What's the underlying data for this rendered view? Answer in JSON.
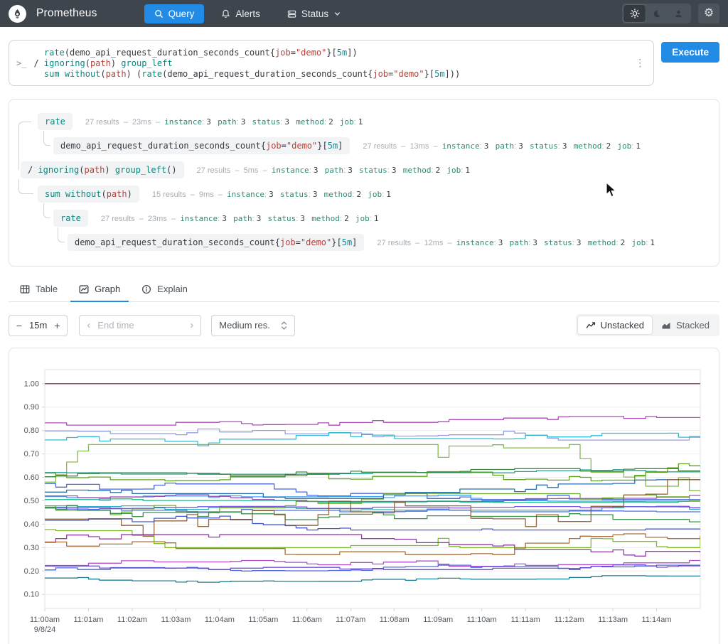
{
  "navbar": {
    "title": "Prometheus",
    "query_label": "Query",
    "alerts_label": "Alerts",
    "status_label": "Status"
  },
  "editor": {
    "prompt": ">_",
    "kebab": "⋮",
    "execute_label": "Execute",
    "lines": [
      [
        [
          "  ",
          "txt"
        ],
        [
          "rate",
          "fn"
        ],
        [
          "(demo_api_request_duration_seconds_count{",
          "txt"
        ],
        [
          "job",
          "lbl"
        ],
        [
          "=",
          "txt"
        ],
        [
          "\"demo\"",
          "str"
        ],
        [
          "}[",
          "txt"
        ],
        [
          "5m",
          "dur"
        ],
        [
          "])",
          "txt"
        ]
      ],
      [
        [
          "/ ",
          "txt"
        ],
        [
          "ignoring",
          "fn"
        ],
        [
          "(",
          "txt"
        ],
        [
          "path",
          "lbl"
        ],
        [
          ") ",
          "txt"
        ],
        [
          "group_left",
          "fn"
        ]
      ],
      [
        [
          "  ",
          "txt"
        ],
        [
          "sum",
          "fn"
        ],
        [
          " ",
          "txt"
        ],
        [
          "without",
          "fn"
        ],
        [
          "(",
          "txt"
        ],
        [
          "path",
          "lbl"
        ],
        [
          ") (",
          "txt"
        ],
        [
          "rate",
          "fn"
        ],
        [
          "(demo_api_request_duration_seconds_count{",
          "txt"
        ],
        [
          "job",
          "lbl"
        ],
        [
          "=",
          "txt"
        ],
        [
          "\"demo\"",
          "str"
        ],
        [
          "}[",
          "txt"
        ],
        [
          "5m",
          "dur"
        ],
        [
          "]))",
          "txt"
        ]
      ]
    ]
  },
  "tree": {
    "rows": [
      {
        "chip": [
          [
            "rate",
            "fn"
          ]
        ],
        "stats": [
          [
            "27 results  –  23ms  –  ",
            "gray"
          ],
          [
            "instance",
            "name"
          ],
          [
            ": ",
            "gray"
          ],
          [
            "3",
            "val"
          ],
          [
            "   ",
            "gray"
          ],
          [
            "path",
            "name"
          ],
          [
            ": ",
            "gray"
          ],
          [
            "3",
            "val"
          ],
          [
            "   ",
            "gray"
          ],
          [
            "status",
            "name"
          ],
          [
            ": ",
            "gray"
          ],
          [
            "3",
            "val"
          ],
          [
            "   ",
            "gray"
          ],
          [
            "method",
            "name"
          ],
          [
            ": ",
            "gray"
          ],
          [
            "2",
            "val"
          ],
          [
            "   ",
            "gray"
          ],
          [
            "job",
            "name"
          ],
          [
            ": ",
            "gray"
          ],
          [
            "1",
            "val"
          ]
        ]
      },
      {
        "chip": [
          [
            "demo_api_request_duration_seconds_count{",
            "txt"
          ],
          [
            "job",
            "lbl"
          ],
          [
            "=",
            "txt"
          ],
          [
            "\"demo\"",
            "str"
          ],
          [
            "}[",
            "txt"
          ],
          [
            "5m",
            "dur"
          ],
          [
            "]",
            "txt"
          ]
        ],
        "stats": [
          [
            "27 results  –  13ms  –  ",
            "gray"
          ],
          [
            "instance",
            "name"
          ],
          [
            ": ",
            "gray"
          ],
          [
            "3",
            "val"
          ],
          [
            "   ",
            "gray"
          ],
          [
            "path",
            "name"
          ],
          [
            ": ",
            "gray"
          ],
          [
            "3",
            "val"
          ],
          [
            "   ",
            "gray"
          ],
          [
            "status",
            "name"
          ],
          [
            ": ",
            "gray"
          ],
          [
            "3",
            "val"
          ],
          [
            "   ",
            "gray"
          ],
          [
            "method",
            "name"
          ],
          [
            ": ",
            "gray"
          ],
          [
            "2",
            "val"
          ],
          [
            "   ",
            "gray"
          ],
          [
            "job",
            "name"
          ],
          [
            ": ",
            "gray"
          ],
          [
            "1",
            "val"
          ]
        ]
      },
      {
        "chip": [
          [
            "/ ",
            "txt"
          ],
          [
            "ignoring",
            "fn"
          ],
          [
            "(",
            "txt"
          ],
          [
            "path",
            "lbl"
          ],
          [
            ") ",
            "txt"
          ],
          [
            "group_left",
            "fn"
          ],
          [
            "()",
            "txt"
          ]
        ],
        "stats": [
          [
            "27 results  –  5ms  –  ",
            "gray"
          ],
          [
            "instance",
            "name"
          ],
          [
            ": ",
            "gray"
          ],
          [
            "3",
            "val"
          ],
          [
            "   ",
            "gray"
          ],
          [
            "path",
            "name"
          ],
          [
            ": ",
            "gray"
          ],
          [
            "3",
            "val"
          ],
          [
            "   ",
            "gray"
          ],
          [
            "status",
            "name"
          ],
          [
            ": ",
            "gray"
          ],
          [
            "3",
            "val"
          ],
          [
            "   ",
            "gray"
          ],
          [
            "method",
            "name"
          ],
          [
            ": ",
            "gray"
          ],
          [
            "2",
            "val"
          ],
          [
            "   ",
            "gray"
          ],
          [
            "job",
            "name"
          ],
          [
            ": ",
            "gray"
          ],
          [
            "1",
            "val"
          ]
        ]
      },
      {
        "chip": [
          [
            "sum",
            "fn"
          ],
          [
            " ",
            "txt"
          ],
          [
            "without",
            "fn"
          ],
          [
            "(",
            "txt"
          ],
          [
            "path",
            "lbl"
          ],
          [
            ")",
            "txt"
          ]
        ],
        "stats": [
          [
            "15 results  –  9ms  –  ",
            "gray"
          ],
          [
            "instance",
            "name"
          ],
          [
            ": ",
            "gray"
          ],
          [
            "3",
            "val"
          ],
          [
            "   ",
            "gray"
          ],
          [
            "status",
            "name"
          ],
          [
            ": ",
            "gray"
          ],
          [
            "3",
            "val"
          ],
          [
            "   ",
            "gray"
          ],
          [
            "method",
            "name"
          ],
          [
            ": ",
            "gray"
          ],
          [
            "2",
            "val"
          ],
          [
            "   ",
            "gray"
          ],
          [
            "job",
            "name"
          ],
          [
            ": ",
            "gray"
          ],
          [
            "1",
            "val"
          ]
        ]
      },
      {
        "chip": [
          [
            "rate",
            "fn"
          ]
        ],
        "stats": [
          [
            "27 results  –  23ms  –  ",
            "gray"
          ],
          [
            "instance",
            "name"
          ],
          [
            ": ",
            "gray"
          ],
          [
            "3",
            "val"
          ],
          [
            "   ",
            "gray"
          ],
          [
            "path",
            "name"
          ],
          [
            ": ",
            "gray"
          ],
          [
            "3",
            "val"
          ],
          [
            "   ",
            "gray"
          ],
          [
            "status",
            "name"
          ],
          [
            ": ",
            "gray"
          ],
          [
            "3",
            "val"
          ],
          [
            "   ",
            "gray"
          ],
          [
            "method",
            "name"
          ],
          [
            ": ",
            "gray"
          ],
          [
            "2",
            "val"
          ],
          [
            "   ",
            "gray"
          ],
          [
            "job",
            "name"
          ],
          [
            ": ",
            "gray"
          ],
          [
            "1",
            "val"
          ]
        ]
      },
      {
        "chip": [
          [
            "demo_api_request_duration_seconds_count{",
            "txt"
          ],
          [
            "job",
            "lbl"
          ],
          [
            "=",
            "txt"
          ],
          [
            "\"demo\"",
            "str"
          ],
          [
            "}[",
            "txt"
          ],
          [
            "5m",
            "dur"
          ],
          [
            "]",
            "txt"
          ]
        ],
        "stats": [
          [
            "27 results  –  12ms  –  ",
            "gray"
          ],
          [
            "instance",
            "name"
          ],
          [
            ": ",
            "gray"
          ],
          [
            "3",
            "val"
          ],
          [
            "   ",
            "gray"
          ],
          [
            "path",
            "name"
          ],
          [
            ": ",
            "gray"
          ],
          [
            "3",
            "val"
          ],
          [
            "   ",
            "gray"
          ],
          [
            "status",
            "name"
          ],
          [
            ": ",
            "gray"
          ],
          [
            "3",
            "val"
          ],
          [
            "   ",
            "gray"
          ],
          [
            "method",
            "name"
          ],
          [
            ": ",
            "gray"
          ],
          [
            "2",
            "val"
          ],
          [
            "   ",
            "gray"
          ],
          [
            "job",
            "name"
          ],
          [
            ": ",
            "gray"
          ],
          [
            "1",
            "val"
          ]
        ]
      }
    ]
  },
  "tabs": {
    "items": [
      {
        "label": "Table",
        "active": false
      },
      {
        "label": "Graph",
        "active": true
      },
      {
        "label": "Explain",
        "active": false
      }
    ]
  },
  "controls": {
    "minus": "−",
    "range_value": "15m",
    "plus": "+",
    "prev_chevron": "‹",
    "end_time_placeholder": "End time",
    "next_chevron": "›",
    "resolution_value": "Medium res.",
    "unstacked_label": "Unstacked",
    "stacked_label": "Stacked"
  },
  "chart_data": {
    "type": "line",
    "subtype": "stepped, 27 overlapping rate() ratio series, unstacked",
    "title": "",
    "xlabel": "",
    "ylabel": "",
    "grid": "horizontal",
    "legend": "none",
    "ylim": [
      0.04,
      1.06
    ],
    "y_ticks": [
      "1.00",
      "0.90",
      "0.80",
      "0.70",
      "0.60",
      "0.50",
      "0.40",
      "0.30",
      "0.20",
      "0.10"
    ],
    "y_tick_values": [
      1.0,
      0.9,
      0.8,
      0.7,
      0.6,
      0.5,
      0.4,
      0.3,
      0.2,
      0.1
    ],
    "x_ticks": [
      "11:00am",
      "11:01am",
      "11:02am",
      "11:03am",
      "11:04am",
      "11:05am",
      "11:06am",
      "11:07am",
      "11:08am",
      "11:09am",
      "11:10am",
      "11:11am",
      "11:12am",
      "11:13am",
      "11:14am"
    ],
    "x_date_label": "9/8/24",
    "x_minutes_span": 15,
    "points_per_series": 61,
    "series": [
      {
        "color": "#7e2f38",
        "base": 1.0,
        "amp": 0,
        "seed": 1
      },
      {
        "color": "#a63cb4",
        "base": 0.835,
        "amp": 0.025,
        "seed": 2
      },
      {
        "color": "#8e96dd",
        "base": 0.79,
        "amp": 0.035,
        "seed": 3
      },
      {
        "color": "#27b6cd",
        "base": 0.775,
        "amp": 0.04,
        "seed": 4
      },
      {
        "color": "#7cb342",
        "base": 0.6,
        "amp": 0.14,
        "seed": 5
      },
      {
        "color": "#0f9b8e",
        "base": 0.625,
        "amp": 0.012,
        "seed": 6
      },
      {
        "color": "#2e7d32",
        "base": 0.612,
        "amp": 0.025,
        "seed": 7
      },
      {
        "color": "#4e9a06",
        "base": 0.63,
        "amp": 0.045,
        "seed": 8
      },
      {
        "color": "#3b5bdb",
        "base": 0.555,
        "amp": 0.05,
        "seed": 9
      },
      {
        "color": "#339af0",
        "base": 0.528,
        "amp": 0.03,
        "seed": 10
      },
      {
        "color": "#9646b5",
        "base": 0.515,
        "amp": 0.018,
        "seed": 11
      },
      {
        "color": "#12b886",
        "base": 0.503,
        "amp": 0.01,
        "seed": 12
      },
      {
        "color": "#15aabf",
        "base": 0.49,
        "amp": 0.03,
        "seed": 13
      },
      {
        "color": "#4263eb",
        "base": 0.475,
        "amp": 0.022,
        "seed": 14
      },
      {
        "color": "#7048e8",
        "base": 0.468,
        "amp": 0.014,
        "seed": 15
      },
      {
        "color": "#66a61e",
        "base": 0.5,
        "amp": 0.06,
        "seed": 16
      },
      {
        "color": "#2b8a3e",
        "base": 0.46,
        "amp": 0.05,
        "seed": 17
      },
      {
        "color": "#1864ab",
        "base": 0.55,
        "amp": 0.04,
        "seed": 18
      },
      {
        "color": "#8a5a2c",
        "base": 0.44,
        "amp": 0.15,
        "seed": 19
      },
      {
        "color": "#364fc7",
        "base": 0.41,
        "amp": 0.035,
        "seed": 20
      },
      {
        "color": "#74b816",
        "base": 0.39,
        "amp": 0.09,
        "seed": 21
      },
      {
        "color": "#862e9c",
        "base": 0.305,
        "amp": 0.05,
        "seed": 22
      },
      {
        "color": "#a0622c",
        "base": 0.33,
        "amp": 0.06,
        "seed": 23
      },
      {
        "color": "#ae3ec9",
        "base": 0.215,
        "amp": 0.03,
        "seed": 24
      },
      {
        "color": "#3b5bdb",
        "base": 0.205,
        "amp": 0.02,
        "seed": 25
      },
      {
        "color": "#6741d9",
        "base": 0.228,
        "amp": 0.022,
        "seed": 26
      },
      {
        "color": "#0b7285",
        "base": 0.165,
        "amp": 0.015,
        "seed": 27
      }
    ]
  }
}
